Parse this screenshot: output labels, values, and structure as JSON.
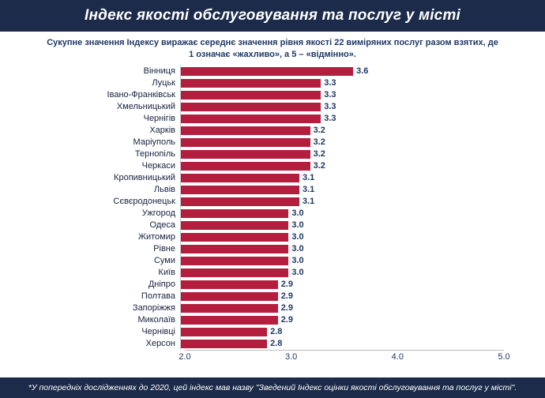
{
  "header": {
    "title": "Індекс якості обслуговування та послуг у місті"
  },
  "subtitle": "Сукупне значення Індексу виражає середнє значення рівня якості 22 виміряних послуг разом взятих, де 1 означає «жахливо», а 5 – «відмінно».",
  "footer": "*У попередніх дослідженнях до 2020, цей індекс мав назву \"Зведений Індекс оцінки якості обслуговування та послуг у місті\".",
  "colors": {
    "banner": "#1c2b4a",
    "bar": "#b41e3e",
    "text": "#1f3864"
  },
  "chart_data": {
    "type": "bar",
    "orientation": "horizontal",
    "title": "Індекс якості обслуговування та послуг у місті",
    "categories": [
      "Вінниця",
      "Луцьк",
      "Івано-Франківськ",
      "Хмельницький",
      "Чернігів",
      "Харків",
      "Маріуполь",
      "Тернопіль",
      "Черкаси",
      "Кропивницький",
      "Львів",
      "Сєвєродонецьк",
      "Ужгород",
      "Одеса",
      "Житомир",
      "Рівне",
      "Суми",
      "Київ",
      "Дніпро",
      "Полтава",
      "Запоріжжя",
      "Миколаїв",
      "Чернівці",
      "Херсон"
    ],
    "values": [
      3.6,
      3.3,
      3.3,
      3.3,
      3.3,
      3.2,
      3.2,
      3.2,
      3.2,
      3.1,
      3.1,
      3.1,
      3.0,
      3.0,
      3.0,
      3.0,
      3.0,
      3.0,
      2.9,
      2.9,
      2.9,
      2.9,
      2.8,
      2.8
    ],
    "xlim": [
      2.0,
      5.0
    ],
    "xticks": [
      "2.0",
      "3.0",
      "4.0",
      "5.0"
    ],
    "grid": false,
    "legend": "none",
    "bar_color": "#b41e3e"
  }
}
